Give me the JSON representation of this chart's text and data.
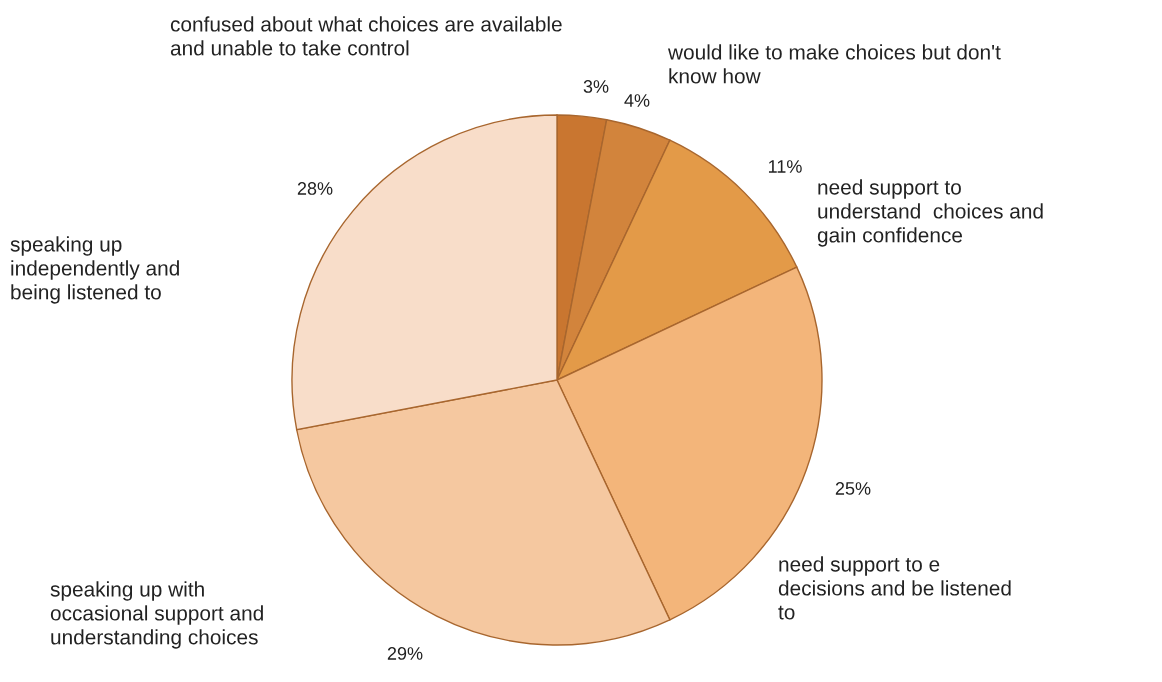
{
  "chart_data": {
    "type": "pie",
    "categories": [
      "confused about what choices are available\nand unable to take control",
      "would like to make choices but don't\nknow how",
      "need support to\nunderstand  choices and\ngain confidence",
      "need support to e\ndecisions and be listened\nto",
      "speaking up with\noccasional support and\nunderstanding choices",
      "speaking up\nindependently and\nbeing listened to"
    ],
    "values": [
      3,
      4,
      11,
      25,
      29,
      28
    ],
    "value_labels": [
      "3%",
      "4%",
      "11%",
      "25%",
      "29%",
      "28%"
    ],
    "colors": [
      "#c97630",
      "#d2843c",
      "#e39a48",
      "#f3b57a",
      "#f5c8a0",
      "#f8ddc9"
    ]
  }
}
